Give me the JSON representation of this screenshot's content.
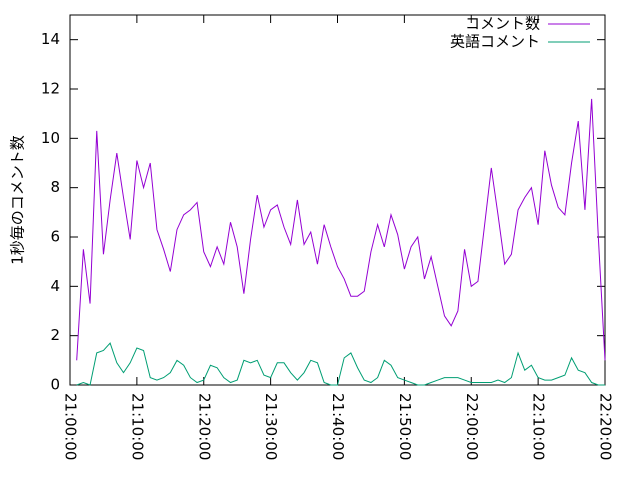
{
  "chart_data": {
    "type": "line",
    "y_label": "1秒毎のコメント数",
    "x": [
      "21:01:00",
      "21:02:00",
      "21:03:00",
      "21:04:00",
      "21:05:00",
      "21:06:00",
      "21:07:00",
      "21:08:00",
      "21:09:00",
      "21:10:00",
      "21:11:00",
      "21:12:00",
      "21:13:00",
      "21:14:00",
      "21:15:00",
      "21:16:00",
      "21:17:00",
      "21:18:00",
      "21:19:00",
      "21:20:00",
      "21:21:00",
      "21:22:00",
      "21:23:00",
      "21:24:00",
      "21:25:00",
      "21:26:00",
      "21:27:00",
      "21:28:00",
      "21:29:00",
      "21:30:00",
      "21:31:00",
      "21:32:00",
      "21:33:00",
      "21:34:00",
      "21:35:00",
      "21:36:00",
      "21:37:00",
      "21:38:00",
      "21:39:00",
      "21:40:00",
      "21:41:00",
      "21:42:00",
      "21:43:00",
      "21:44:00",
      "21:45:00",
      "21:46:00",
      "21:47:00",
      "21:48:00",
      "21:49:00",
      "21:50:00",
      "21:51:00",
      "21:52:00",
      "21:53:00",
      "21:54:00",
      "21:55:00",
      "21:56:00",
      "21:57:00",
      "21:58:00",
      "21:59:00",
      "22:00:00",
      "22:01:00",
      "22:02:00",
      "22:03:00",
      "22:04:00",
      "22:05:00",
      "22:06:00",
      "22:07:00",
      "22:08:00",
      "22:09:00",
      "22:10:00",
      "22:11:00",
      "22:12:00",
      "22:13:00",
      "22:14:00",
      "22:15:00",
      "22:16:00",
      "22:17:00",
      "22:18:00",
      "22:19:00",
      "22:20:00"
    ],
    "series": [
      {
        "name": "コメント数",
        "color": "#9400d3",
        "values": [
          1.0,
          5.5,
          3.3,
          10.3,
          5.3,
          7.5,
          9.4,
          7.6,
          5.9,
          9.1,
          8.0,
          9.0,
          6.3,
          5.5,
          4.6,
          6.3,
          6.9,
          7.1,
          7.4,
          5.4,
          4.8,
          5.6,
          4.9,
          6.6,
          5.6,
          3.7,
          5.9,
          7.7,
          6.4,
          7.1,
          7.3,
          6.4,
          5.7,
          7.5,
          5.7,
          6.2,
          4.9,
          6.5,
          5.6,
          4.8,
          4.3,
          3.6,
          3.6,
          3.8,
          5.4,
          6.5,
          5.6,
          6.9,
          6.1,
          4.7,
          5.6,
          6.0,
          4.3,
          5.2,
          4.0,
          2.8,
          2.4,
          3.0,
          5.5,
          4.0,
          4.2,
          6.5,
          8.8,
          6.9,
          4.9,
          5.3,
          7.1,
          7.6,
          8.0,
          6.5,
          9.5,
          8.1,
          7.2,
          6.9,
          9.0,
          10.7,
          7.1,
          11.6,
          6.0,
          1.0
        ]
      },
      {
        "name": "英語コメント",
        "color": "#009e73",
        "values": [
          0,
          0.1,
          0,
          1.3,
          1.4,
          1.7,
          0.9,
          0.5,
          0.9,
          1.5,
          1.4,
          0.3,
          0.2,
          0.3,
          0.5,
          1.0,
          0.8,
          0.3,
          0.1,
          0.2,
          0.8,
          0.7,
          0.3,
          0.1,
          0.2,
          1.0,
          0.9,
          1.0,
          0.4,
          0.3,
          0.9,
          0.9,
          0.5,
          0.2,
          0.5,
          1.0,
          0.9,
          0.1,
          0,
          0,
          1.1,
          1.3,
          0.7,
          0.2,
          0.1,
          0.3,
          1.0,
          0.8,
          0.3,
          0.2,
          0.1,
          0,
          0,
          0.1,
          0.2,
          0.3,
          0.3,
          0.3,
          0.2,
          0.1,
          0.1,
          0.1,
          0.1,
          0.2,
          0.1,
          0.3,
          1.3,
          0.6,
          0.8,
          0.3,
          0.2,
          0.2,
          0.3,
          0.4,
          1.1,
          0.6,
          0.5,
          0.1,
          0,
          0
        ]
      }
    ],
    "xlim": [
      "21:00:00",
      "22:20:00"
    ],
    "xticks": [
      "21:00:00",
      "21:10:00",
      "21:20:00",
      "21:30:00",
      "21:40:00",
      "21:50:00",
      "22:00:00",
      "22:10:00",
      "22:20:00"
    ],
    "ylim": [
      0,
      15
    ],
    "yticks": [
      0,
      2,
      4,
      6,
      8,
      10,
      12,
      14
    ],
    "legend": "top-right"
  }
}
